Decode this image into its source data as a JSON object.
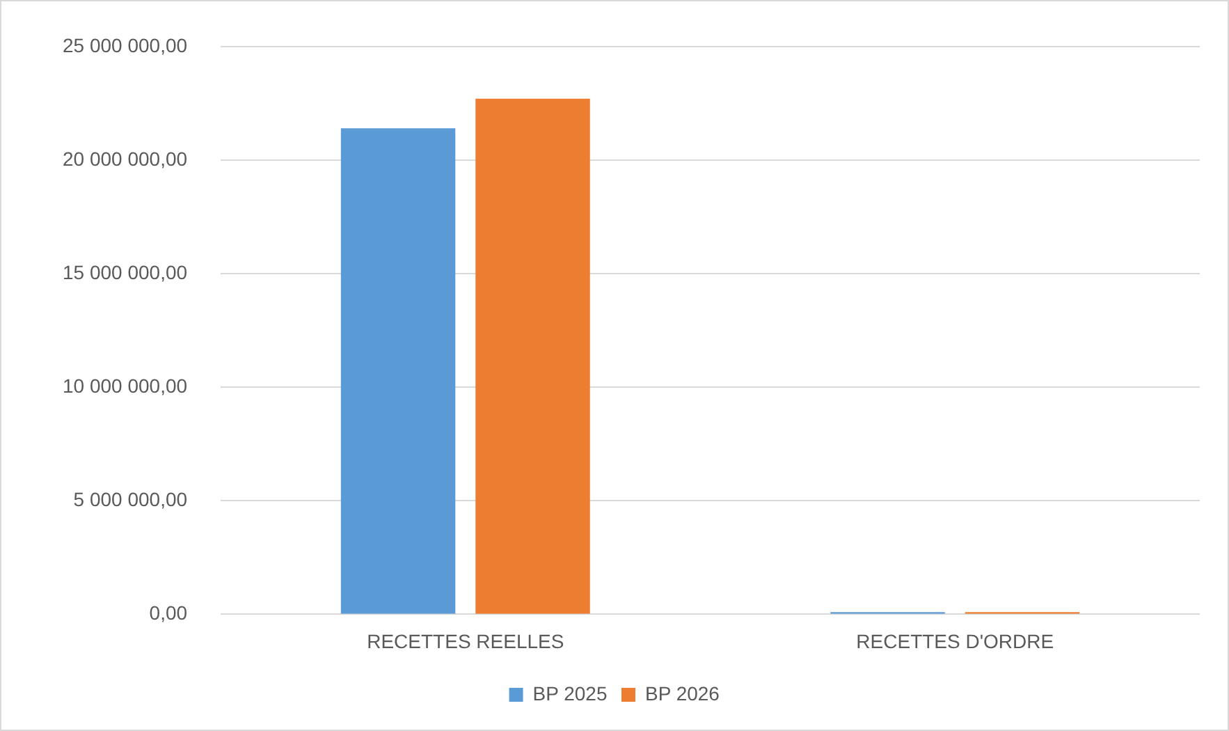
{
  "chart_data": {
    "type": "bar",
    "categories": [
      "RECETTES REELLES",
      "RECETTES D'ORDRE"
    ],
    "series": [
      {
        "name": "BP 2025",
        "color": "#5b9bd5",
        "values": [
          21400000,
          100000
        ]
      },
      {
        "name": "BP 2026",
        "color": "#ed7d31",
        "values": [
          22700000,
          100000
        ]
      }
    ],
    "ylim": [
      0,
      25000000
    ],
    "yticks": [
      {
        "value": 0,
        "label": "0,00"
      },
      {
        "value": 5000000,
        "label": "5 000 000,00"
      },
      {
        "value": 10000000,
        "label": "10 000 000,00"
      },
      {
        "value": 15000000,
        "label": "15 000 000,00"
      },
      {
        "value": 20000000,
        "label": "20 000 000,00"
      },
      {
        "value": 25000000,
        "label": "25 000 000,00"
      }
    ],
    "grid": "y",
    "legend": "bottom"
  }
}
